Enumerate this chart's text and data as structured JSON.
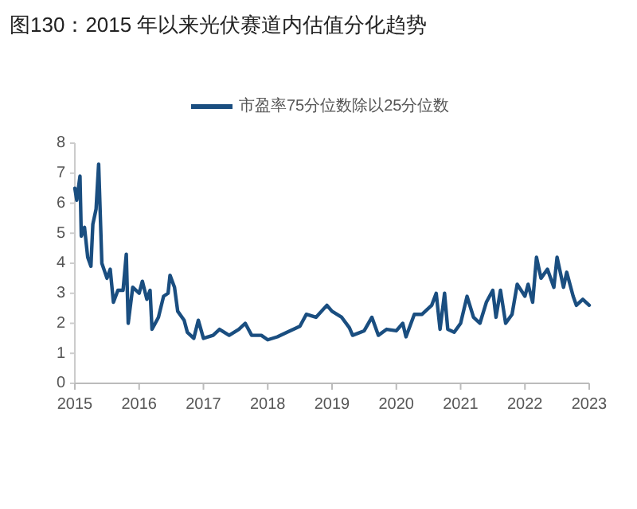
{
  "chart_data": {
    "type": "line",
    "title": "图130：2015 年以来光伏赛道内估值分化趋势",
    "legend": "top",
    "x": [
      2015.0,
      2015.03,
      2015.08,
      2015.1,
      2015.15,
      2015.2,
      2015.25,
      2015.28,
      2015.33,
      2015.37,
      2015.42,
      2015.5,
      2015.55,
      2015.6,
      2015.67,
      2015.75,
      2015.8,
      2015.83,
      2015.9,
      2016.0,
      2016.05,
      2016.12,
      2016.17,
      2016.2,
      2016.3,
      2016.38,
      2016.45,
      2016.48,
      2016.55,
      2016.6,
      2016.7,
      2016.75,
      2016.85,
      2016.92,
      2017.0,
      2017.15,
      2017.25,
      2017.4,
      2017.55,
      2017.65,
      2017.75,
      2017.9,
      2018.0,
      2018.15,
      2018.3,
      2018.5,
      2018.6,
      2018.75,
      2018.92,
      2019.0,
      2019.15,
      2019.27,
      2019.32,
      2019.5,
      2019.62,
      2019.72,
      2019.85,
      2020.0,
      2020.1,
      2020.15,
      2020.28,
      2020.4,
      2020.55,
      2020.62,
      2020.68,
      2020.75,
      2020.8,
      2020.9,
      2021.0,
      2021.1,
      2021.2,
      2021.3,
      2021.4,
      2021.5,
      2021.55,
      2021.62,
      2021.7,
      2021.8,
      2021.88,
      2022.0,
      2022.05,
      2022.12,
      2022.18,
      2022.25,
      2022.35,
      2022.45,
      2022.5,
      2022.6,
      2022.65,
      2022.75,
      2022.8,
      2022.9,
      2023.0
    ],
    "series": [
      {
        "name": "市盈率75分位数除以25分位数",
        "color": "#1a4e80",
        "values": [
          6.5,
          6.1,
          6.9,
          4.9,
          5.2,
          4.2,
          3.9,
          5.3,
          5.8,
          7.3,
          4.0,
          3.5,
          3.8,
          2.7,
          3.1,
          3.1,
          4.3,
          2.0,
          3.2,
          3.0,
          3.4,
          2.8,
          3.1,
          1.8,
          2.2,
          2.9,
          3.0,
          3.6,
          3.2,
          2.4,
          2.1,
          1.7,
          1.5,
          2.1,
          1.5,
          1.6,
          1.8,
          1.6,
          1.8,
          2.0,
          1.6,
          1.6,
          1.45,
          1.55,
          1.7,
          1.9,
          2.3,
          2.2,
          2.6,
          2.4,
          2.2,
          1.85,
          1.6,
          1.75,
          2.2,
          1.6,
          1.8,
          1.75,
          2.0,
          1.55,
          2.3,
          2.3,
          2.6,
          3.0,
          1.8,
          3.0,
          1.8,
          1.7,
          2.0,
          2.9,
          2.2,
          2.0,
          2.7,
          3.1,
          2.2,
          3.1,
          2.0,
          2.3,
          3.3,
          2.9,
          3.3,
          2.7,
          4.2,
          3.5,
          3.8,
          3.2,
          4.2,
          3.2,
          3.7,
          2.9,
          2.6,
          2.8,
          2.6
        ]
      }
    ],
    "xlim": [
      2015,
      2023
    ],
    "ylim": [
      0,
      8
    ],
    "xticks": [
      2015,
      2016,
      2017,
      2018,
      2019,
      2020,
      2021,
      2022,
      2023
    ],
    "yticks": [
      0,
      1,
      2,
      3,
      4,
      5,
      6,
      7,
      8
    ]
  }
}
